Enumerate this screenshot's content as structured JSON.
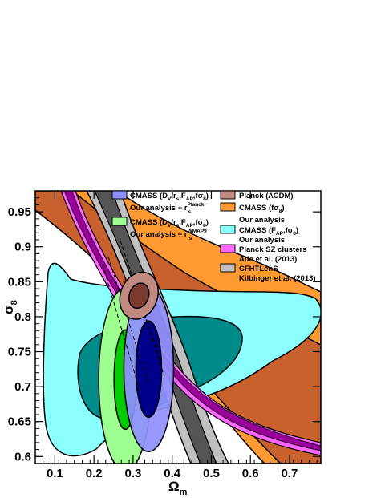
{
  "chart_data": {
    "type": "contour",
    "xlabel": "Ω",
    "xlabel_sub": "m",
    "ylabel": "σ",
    "ylabel_sub": "8",
    "xlim": [
      0.05,
      0.78
    ],
    "ylim": [
      0.59,
      0.98
    ],
    "x_ticks": [
      0.1,
      0.2,
      0.3,
      0.4,
      0.5,
      0.6,
      0.7
    ],
    "x_tick_labels": [
      "0.1",
      "0.2",
      "0.3",
      "0.4",
      "0.5",
      "0.6",
      "0.7"
    ],
    "y_ticks": [
      0.6,
      0.65,
      0.7,
      0.75,
      0.8,
      0.85,
      0.9,
      0.95
    ],
    "y_tick_labels": [
      "0.6",
      "0.65",
      "0.7",
      "0.75",
      "0.8",
      "0.85",
      "0.9",
      "0.95"
    ],
    "legend_position": "top-right",
    "legend": [
      {
        "key": "cmass-planck",
        "color": "#8f8fff",
        "text": "CMASS (D",
        "subtext": "Our analysis + r",
        "sup": "Planck",
        "sub": "s"
      },
      {
        "key": "cmass-wmap9",
        "color": "#9cff8f",
        "text": "CMASS (D",
        "subtext": "Our analysis + r",
        "sup": "WMAP9",
        "sub": "s"
      },
      {
        "key": "planck",
        "color": "#c08a80",
        "text": "Planck (ΛCDM)"
      },
      {
        "key": "cmass-fs8",
        "color": "#ff9a33",
        "text": "CMASS (fσ",
        "sub": "8",
        "subtext": "Our analysis"
      },
      {
        "key": "cmass-fap",
        "color": "#8cffff",
        "text": "CMASS (F",
        "subtext": "Our analysis"
      },
      {
        "key": "planck-sz",
        "color": "#ff66ff",
        "text": "Planck SZ clusters",
        "subtext": "Ade et al. (2013)"
      },
      {
        "key": "cfhtlens",
        "color": "#c0c0c0",
        "text": "CFHTLenS",
        "subtext": "Kilbinger et al. (2013)"
      }
    ],
    "regions": {
      "cmass_fs8": {
        "color_outer": "#ff9a33",
        "color_inner": "#c8612e",
        "description_value": "degeneracy band"
      },
      "cmass_fap_fs8": {
        "color_outer": "#8cffff",
        "color_inner": "#008b8b",
        "center": [
          0.3,
          0.735
        ]
      },
      "planck_sz": {
        "color_outer": "#ff66ff",
        "color_inner": "#990099"
      },
      "cfhtlens": {
        "color_outer": "#c0c0c0",
        "color_inner": "#555555"
      },
      "cmass_dv_planck": {
        "color_outer": "#8f8fff",
        "color_inner": "#00008b",
        "center": [
          0.34,
          0.725
        ]
      },
      "cmass_dv_wmap9": {
        "color_outer": "#9cff8f",
        "color_inner": "#00cc00",
        "center": [
          0.28,
          0.71
        ]
      },
      "planck_lcdm": {
        "color_outer": "#c08a80",
        "color_inner": "#7a3a30",
        "center": [
          0.315,
          0.83
        ]
      }
    }
  }
}
